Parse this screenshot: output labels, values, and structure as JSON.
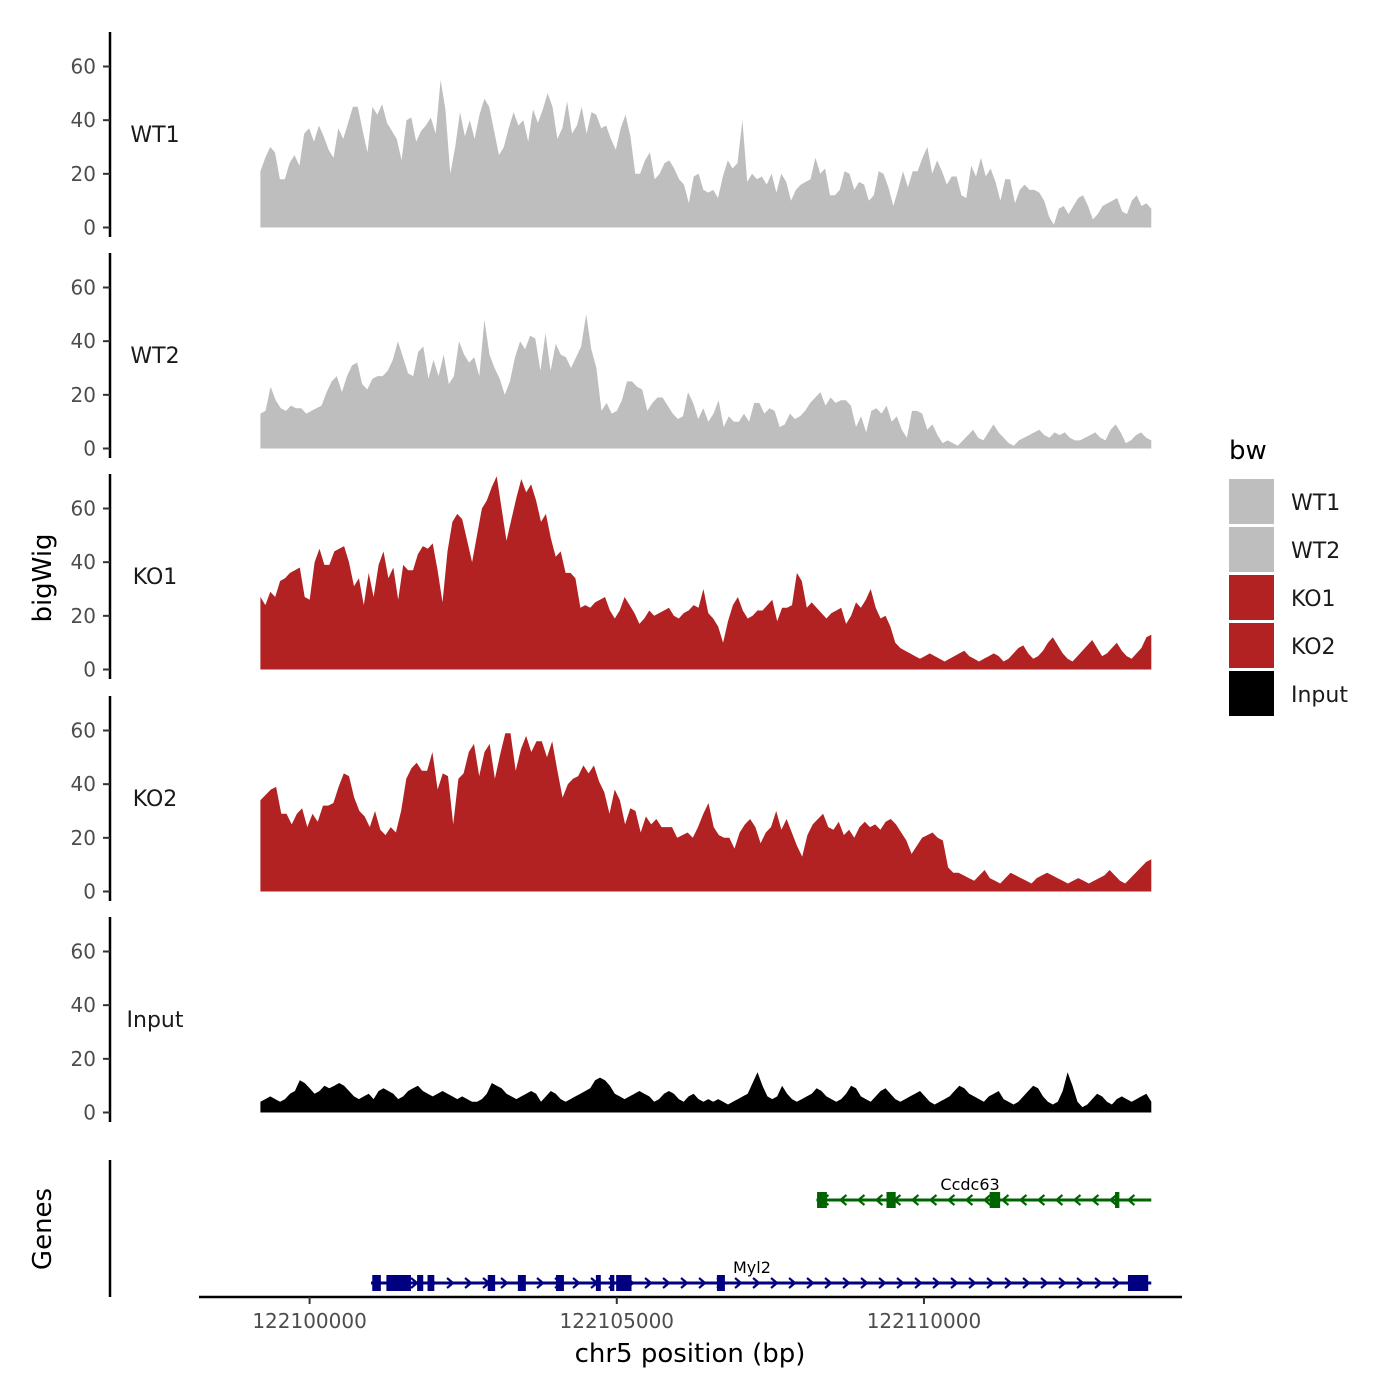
{
  "chart_data": {
    "type": "area",
    "chromosome": "chr5",
    "x_range_bp": [
      122099200,
      122113700
    ],
    "xlim": [
      122098200,
      122114200
    ],
    "x_ticks": [
      122100000,
      122105000,
      122110000
    ],
    "x_tick_labels": [
      "122100000",
      "122105000",
      "122110000"
    ],
    "xlabel": "chr5 position (bp)",
    "ylabel": "bigWig",
    "ylim": [
      0,
      72
    ],
    "y_ticks": [
      0,
      20,
      40,
      60
    ],
    "y_tick_labels": [
      "0",
      "20",
      "40",
      "60"
    ],
    "genes_label": "Genes",
    "legend": {
      "title": "bw",
      "entries": [
        {
          "label": "WT1",
          "color": "#bebebe"
        },
        {
          "label": "WT2",
          "color": "#bebebe"
        },
        {
          "label": "KO1",
          "color": "#b22222"
        },
        {
          "label": "KO2",
          "color": "#b22222"
        },
        {
          "label": "Input",
          "color": "#000000"
        }
      ]
    },
    "series": [
      {
        "name": "WT1",
        "color": "#bebebe",
        "values": [
          21,
          26,
          30,
          28,
          18,
          18,
          24,
          27,
          23,
          35,
          37,
          32,
          38,
          34,
          29,
          26,
          37,
          33,
          39,
          45,
          45,
          36,
          28,
          45,
          42,
          46,
          39,
          36,
          33,
          25,
          40,
          41,
          32,
          36,
          38,
          41,
          35,
          55,
          44,
          20,
          30,
          43,
          34,
          40,
          33,
          42,
          48,
          45,
          36,
          27,
          30,
          37,
          43,
          38,
          40,
          32,
          44,
          39,
          44,
          50,
          45,
          33,
          37,
          47,
          35,
          38,
          45,
          35,
          43,
          42,
          37,
          38,
          33,
          29,
          37,
          42,
          34,
          20,
          20,
          25,
          28,
          18,
          20,
          24,
          25,
          22,
          18,
          16,
          9,
          19,
          20,
          14,
          13,
          14,
          11,
          19,
          25,
          22,
          24,
          40,
          17,
          20,
          18,
          19,
          16,
          20,
          13,
          20,
          17,
          10,
          14,
          16,
          17,
          18,
          26,
          20,
          22,
          12,
          12,
          14,
          21,
          20,
          14,
          17,
          16,
          10,
          12,
          21,
          20,
          15,
          8,
          14,
          21,
          15,
          21,
          21,
          26,
          30,
          20,
          25,
          21,
          16,
          19,
          19,
          12,
          11,
          23,
          19,
          26,
          19,
          22,
          17,
          10,
          18,
          18,
          9,
          14,
          16,
          14,
          14,
          13,
          10,
          4,
          1,
          7,
          8,
          5,
          8,
          11,
          12,
          8,
          3,
          5,
          8,
          9,
          10,
          11,
          6,
          5,
          10,
          12,
          8,
          9,
          7
        ]
      },
      {
        "name": "WT2",
        "color": "#bebebe",
        "values": [
          13,
          14,
          23,
          18,
          15,
          14,
          16,
          15,
          15,
          13,
          14,
          15,
          16,
          21,
          25,
          27,
          21,
          27,
          31,
          32,
          24,
          22,
          26,
          27,
          27,
          29,
          33,
          40,
          34,
          28,
          27,
          36,
          38,
          26,
          33,
          27,
          35,
          24,
          27,
          40,
          35,
          32,
          34,
          27,
          48,
          35,
          30,
          26,
          20,
          25,
          34,
          40,
          37,
          42,
          41,
          29,
          43,
          29,
          39,
          35,
          34,
          30,
          34,
          38,
          50,
          37,
          30,
          14,
          17,
          13,
          14,
          18,
          25,
          25,
          23,
          22,
          14,
          17,
          19,
          19,
          16,
          13,
          11,
          12,
          21,
          17,
          11,
          15,
          10,
          13,
          18,
          8,
          12,
          10,
          10,
          13,
          10,
          17,
          17,
          13,
          15,
          14,
          8,
          9,
          13,
          11,
          12,
          14,
          17,
          19,
          21,
          16,
          19,
          17,
          18,
          18,
          16,
          8,
          12,
          6,
          14,
          15,
          13,
          16,
          10,
          12,
          7,
          4,
          14,
          14,
          13,
          7,
          9,
          5,
          2,
          3,
          2,
          1,
          3,
          5,
          7,
          4,
          3,
          6,
          9,
          6,
          4,
          2,
          1,
          3,
          4,
          5,
          6,
          7,
          5,
          4,
          6,
          5,
          6,
          4,
          3,
          3,
          4,
          5,
          6,
          4,
          3,
          7,
          9,
          6,
          2,
          3,
          5,
          6,
          4,
          3
        ]
      },
      {
        "name": "KO1",
        "color": "#b22222",
        "values": [
          27,
          24,
          29,
          27,
          33,
          34,
          36,
          37,
          38,
          27,
          26,
          40,
          45,
          39,
          39,
          44,
          45,
          46,
          40,
          31,
          34,
          24,
          36,
          27,
          39,
          44,
          34,
          38,
          26,
          39,
          37,
          37,
          43,
          46,
          45,
          47,
          37,
          25,
          44,
          55,
          58,
          56,
          48,
          40,
          50,
          60,
          63,
          68,
          72,
          60,
          48,
          56,
          64,
          71,
          66,
          69,
          63,
          55,
          58,
          49,
          42,
          44,
          36,
          36,
          34,
          23,
          24,
          23,
          25,
          26,
          27,
          22,
          19,
          22,
          27,
          24,
          21,
          17,
          19,
          22,
          20,
          21,
          22,
          23,
          20,
          19,
          21,
          22,
          24,
          23,
          30,
          21,
          19,
          16,
          10,
          18,
          24,
          27,
          22,
          19,
          20,
          22,
          22,
          24,
          26,
          18,
          23,
          23,
          24,
          36,
          33,
          23,
          25,
          23,
          21,
          19,
          21,
          22,
          23,
          17,
          20,
          25,
          23,
          26,
          30,
          23,
          19,
          20,
          16,
          10,
          8,
          7,
          6,
          5,
          4,
          5,
          6,
          5,
          4,
          3,
          4,
          5,
          6,
          7,
          5,
          4,
          3,
          4,
          5,
          6,
          5,
          3,
          4,
          6,
          8,
          9,
          6,
          4,
          5,
          7,
          10,
          12,
          9,
          6,
          4,
          3,
          5,
          7,
          9,
          11,
          8,
          5,
          6,
          8,
          10,
          7,
          5,
          4,
          6,
          8,
          12,
          13
        ]
      },
      {
        "name": "KO2",
        "color": "#b22222",
        "values": [
          34,
          36,
          38,
          39,
          29,
          29,
          25,
          29,
          31,
          24,
          29,
          26,
          32,
          32,
          33,
          39,
          44,
          43,
          35,
          30,
          28,
          24,
          30,
          23,
          21,
          24,
          22,
          30,
          42,
          46,
          48,
          45,
          45,
          52,
          38,
          44,
          43,
          25,
          42,
          44,
          52,
          55,
          43,
          52,
          55,
          42,
          51,
          59,
          59,
          45,
          53,
          58,
          52,
          56,
          56,
          50,
          56,
          45,
          35,
          40,
          42,
          43,
          47,
          44,
          47,
          41,
          37,
          29,
          38,
          34,
          25,
          31,
          30,
          22,
          28,
          25,
          27,
          24,
          24,
          24,
          20,
          21,
          22,
          20,
          24,
          29,
          33,
          24,
          21,
          20,
          20,
          16,
          22,
          25,
          27,
          24,
          18,
          22,
          24,
          30,
          23,
          27,
          22,
          17,
          13,
          21,
          25,
          27,
          29,
          24,
          23,
          26,
          21,
          23,
          20,
          24,
          26,
          24,
          25,
          23,
          26,
          27,
          25,
          22,
          19,
          14,
          17,
          20,
          21,
          22,
          20,
          19,
          9,
          7,
          7,
          6,
          5,
          4,
          6,
          8,
          5,
          4,
          3,
          5,
          7,
          6,
          5,
          4,
          3,
          5,
          6,
          7,
          6,
          5,
          4,
          3,
          4,
          5,
          4,
          3,
          4,
          5,
          6,
          8,
          6,
          4,
          3,
          5,
          7,
          9,
          11,
          12
        ]
      },
      {
        "name": "Input",
        "color": "#000000",
        "values": [
          4,
          5,
          6,
          5,
          4,
          5,
          7,
          8,
          12,
          11,
          9,
          7,
          8,
          10,
          9,
          10,
          11,
          10,
          8,
          6,
          5,
          6,
          7,
          5,
          8,
          9,
          8,
          7,
          5,
          6,
          8,
          9,
          10,
          8,
          7,
          6,
          7,
          8,
          7,
          6,
          5,
          6,
          5,
          4,
          4,
          5,
          7,
          11,
          10,
          9,
          7,
          6,
          5,
          6,
          7,
          8,
          7,
          4,
          6,
          8,
          7,
          5,
          4,
          5,
          6,
          7,
          8,
          9,
          12,
          13,
          12,
          10,
          7,
          6,
          5,
          6,
          7,
          8,
          7,
          6,
          4,
          5,
          7,
          8,
          7,
          5,
          4,
          6,
          7,
          5,
          4,
          5,
          4,
          5,
          4,
          3,
          4,
          5,
          6,
          7,
          11,
          15,
          10,
          6,
          5,
          6,
          10,
          7,
          5,
          4,
          5,
          6,
          7,
          9,
          8,
          6,
          5,
          4,
          5,
          7,
          10,
          9,
          6,
          5,
          4,
          6,
          8,
          9,
          7,
          5,
          4,
          5,
          6,
          7,
          8,
          6,
          4,
          3,
          4,
          5,
          6,
          8,
          10,
          9,
          7,
          6,
          5,
          4,
          6,
          7,
          8,
          5,
          4,
          3,
          4,
          6,
          8,
          10,
          9,
          6,
          4,
          3,
          4,
          8,
          15,
          10,
          4,
          2,
          3,
          5,
          7,
          6,
          4,
          3,
          5,
          6,
          5,
          4,
          5,
          6,
          7,
          4
        ]
      }
    ],
    "genes": [
      {
        "name": "Myl2",
        "strand": "+",
        "color": "#000080",
        "start": 122101000,
        "end": 122113700,
        "exons": [
          {
            "start": 122101020,
            "end": 122101160
          },
          {
            "start": 122101250,
            "end": 122101650
          },
          {
            "start": 122101750,
            "end": 122101850
          },
          {
            "start": 122101920,
            "end": 122102030
          },
          {
            "start": 122102900,
            "end": 122103020
          },
          {
            "start": 122103390,
            "end": 122103520
          },
          {
            "start": 122104010,
            "end": 122104140
          },
          {
            "start": 122104660,
            "end": 122104740
          },
          {
            "start": 122104890,
            "end": 122104960
          },
          {
            "start": 122104990,
            "end": 122105240
          },
          {
            "start": 122106630,
            "end": 122106760
          },
          {
            "start": 122113320,
            "end": 122113650
          }
        ]
      },
      {
        "name": "Ccdc63",
        "strand": "-",
        "color": "#006400",
        "start": 122108250,
        "end": 122113700,
        "exons": [
          {
            "start": 122108260,
            "end": 122108420
          },
          {
            "start": 122109390,
            "end": 122109540
          },
          {
            "start": 122111070,
            "end": 122111240
          },
          {
            "start": 122113110,
            "end": 122113180
          }
        ]
      }
    ]
  }
}
